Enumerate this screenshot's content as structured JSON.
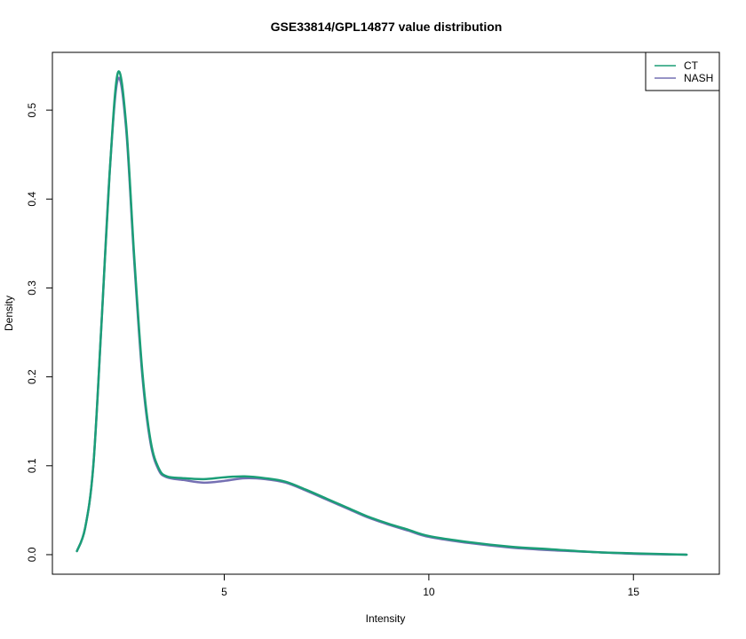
{
  "chart_data": {
    "type": "line",
    "title": "GSE33814/GPL14877 value distribution",
    "xlabel": "Intensity",
    "ylabel": "Density",
    "xlim": [
      0.8,
      17.1
    ],
    "ylim": [
      -0.022,
      0.565
    ],
    "x_ticks": [
      5,
      10,
      15
    ],
    "y_ticks": [
      0.0,
      0.1,
      0.2,
      0.3,
      0.4,
      0.5
    ],
    "x_tick_labels": [
      "5",
      "10",
      "15"
    ],
    "y_tick_labels": [
      "0.0",
      "0.1",
      "0.2",
      "0.3",
      "0.4",
      "0.5"
    ],
    "legend": {
      "position": "top-right",
      "entries": [
        {
          "label": "CT",
          "color": "#1b9e77"
        },
        {
          "label": "NASH",
          "color": "#7570b3"
        }
      ]
    },
    "grid": false,
    "series": [
      {
        "name": "NASH",
        "color": "#7570b3",
        "x": [
          1.4,
          1.6,
          1.8,
          2.0,
          2.2,
          2.4,
          2.6,
          2.8,
          3.0,
          3.2,
          3.4,
          3.6,
          4.0,
          4.5,
          5.0,
          5.5,
          6.0,
          6.5,
          7.0,
          7.5,
          8.0,
          8.5,
          9.0,
          9.5,
          10.0,
          11.0,
          12.0,
          13.0,
          14.0,
          15.0,
          16.3
        ],
        "y": [
          0.004,
          0.03,
          0.1,
          0.26,
          0.43,
          0.535,
          0.48,
          0.33,
          0.2,
          0.125,
          0.095,
          0.087,
          0.084,
          0.081,
          0.083,
          0.086,
          0.085,
          0.081,
          0.072,
          0.062,
          0.052,
          0.042,
          0.034,
          0.027,
          0.02,
          0.013,
          0.008,
          0.005,
          0.003,
          0.001,
          0.0
        ]
      },
      {
        "name": "CT",
        "color": "#1b9e77",
        "x": [
          1.4,
          1.6,
          1.8,
          2.0,
          2.2,
          2.4,
          2.6,
          2.8,
          3.0,
          3.2,
          3.4,
          3.6,
          4.0,
          4.5,
          5.0,
          5.5,
          6.0,
          6.5,
          7.0,
          7.5,
          8.0,
          8.5,
          9.0,
          9.5,
          10.0,
          11.0,
          12.0,
          13.0,
          14.0,
          15.0,
          16.3
        ],
        "y": [
          0.004,
          0.03,
          0.1,
          0.26,
          0.43,
          0.542,
          0.485,
          0.335,
          0.205,
          0.128,
          0.097,
          0.088,
          0.086,
          0.085,
          0.087,
          0.088,
          0.086,
          0.082,
          0.073,
          0.063,
          0.053,
          0.043,
          0.035,
          0.028,
          0.021,
          0.014,
          0.009,
          0.006,
          0.003,
          0.0015,
          0.0
        ]
      }
    ]
  }
}
